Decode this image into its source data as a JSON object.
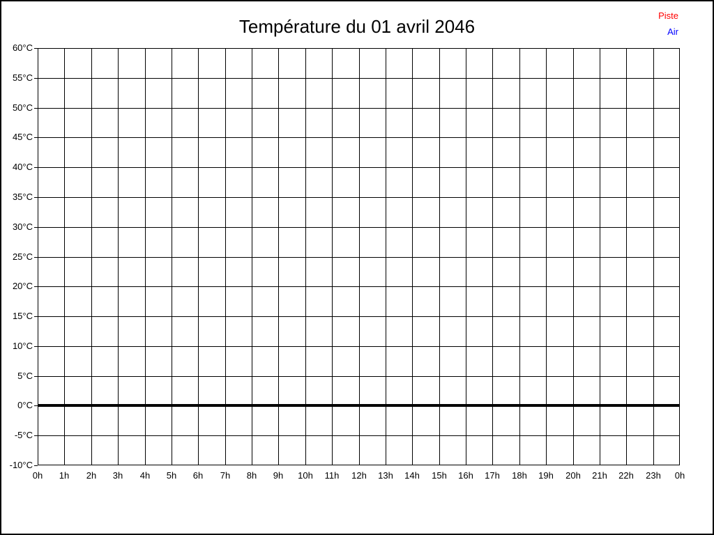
{
  "page": {
    "title": "Température du 01 avril 2046"
  },
  "legend": {
    "items": [
      {
        "label": "Piste",
        "color": "#ff0000"
      },
      {
        "label": "Air",
        "color": "#0000ff"
      }
    ]
  },
  "chart_data": {
    "type": "line",
    "title": "Température du 01 avril 2046",
    "xlabel": "",
    "ylabel": "",
    "x_tick_labels": [
      "0h",
      "1h",
      "2h",
      "3h",
      "4h",
      "5h",
      "6h",
      "7h",
      "8h",
      "9h",
      "10h",
      "11h",
      "12h",
      "13h",
      "14h",
      "15h",
      "16h",
      "17h",
      "18h",
      "19h",
      "20h",
      "21h",
      "22h",
      "23h",
      "0h"
    ],
    "y_tick_labels": [
      "60°C",
      "55°C",
      "50°C",
      "45°C",
      "40°C",
      "35°C",
      "30°C",
      "25°C",
      "20°C",
      "15°C",
      "10°C",
      "5°C",
      "0°C",
      "-5°C",
      "-10°C"
    ],
    "ylim": [
      -10,
      60
    ],
    "y_step": 5,
    "x_range_hours": [
      0,
      24
    ],
    "grid": true,
    "zero_line": {
      "value": 0,
      "thick": true,
      "color": "#000000"
    },
    "legend_position": "top-right",
    "series": [
      {
        "name": "Piste",
        "color": "#ff0000",
        "values": []
      },
      {
        "name": "Air",
        "color": "#0000ff",
        "values": []
      }
    ]
  }
}
